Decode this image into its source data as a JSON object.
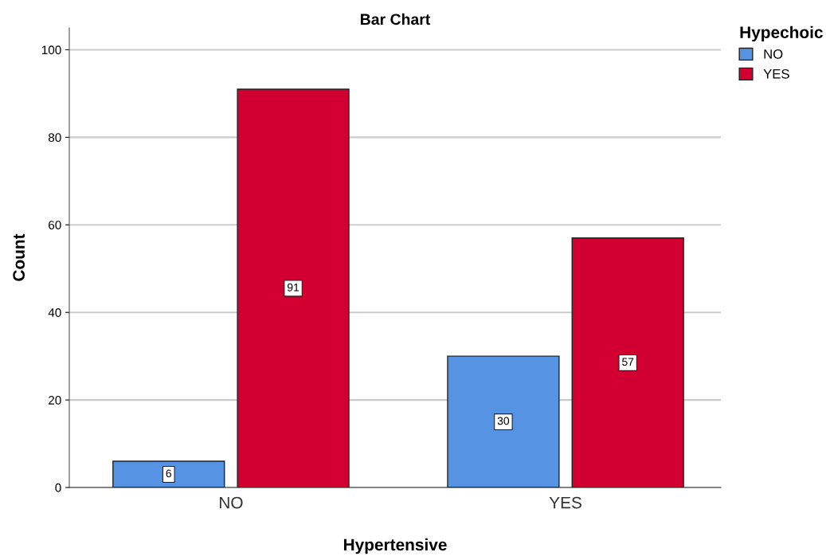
{
  "chart_data": {
    "type": "bar",
    "title": "Bar Chart",
    "xlabel": "Hypertensive",
    "ylabel": "Count",
    "legend_title": "Hypechoic",
    "categories": [
      "NO",
      "YES"
    ],
    "series": [
      {
        "name": "NO",
        "color": "#5694e3",
        "values": [
          6,
          30
        ]
      },
      {
        "name": "YES",
        "color": "#d20030",
        "values": [
          91,
          57
        ]
      }
    ],
    "ylim": [
      0,
      105
    ],
    "yticks": [
      0,
      20,
      40,
      60,
      80,
      100
    ],
    "grid": "y",
    "legend": "top right",
    "data_labels": true
  }
}
